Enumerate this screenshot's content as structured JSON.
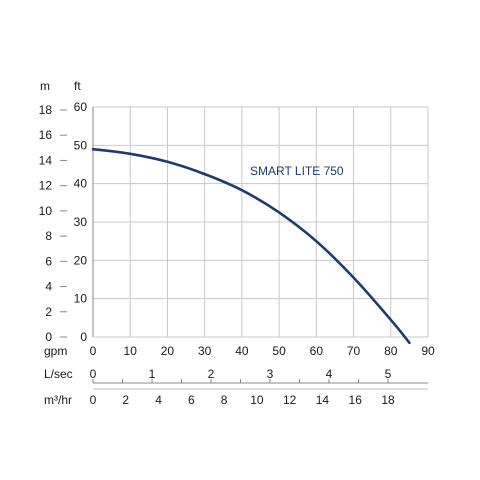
{
  "chart_data": {
    "type": "line",
    "axes": {
      "left_m": {
        "unit": "m",
        "ticks": [
          "18",
          "16",
          "14",
          "12",
          "10",
          "8",
          "6",
          "4",
          "2",
          "0"
        ],
        "range": [
          0,
          18
        ]
      },
      "left_ft": {
        "unit": "ft",
        "ticks": [
          "60",
          "50",
          "40",
          "30",
          "20",
          "10",
          "0"
        ],
        "range": [
          0,
          60
        ]
      },
      "x_gpm": {
        "unit": "gpm",
        "ticks": [
          "0",
          "10",
          "20",
          "30",
          "40",
          "50",
          "60",
          "70",
          "80",
          "90"
        ],
        "range": [
          0,
          90
        ]
      },
      "x_lsec": {
        "unit": "L/sec",
        "ticks": [
          "0",
          "1",
          "2",
          "3",
          "4",
          "5"
        ]
      },
      "x_m3hr": {
        "unit": "m³/hr",
        "ticks": [
          "0",
          "2",
          "4",
          "6",
          "8",
          "10",
          "12",
          "14",
          "16",
          "18"
        ]
      }
    },
    "grid": true,
    "series": [
      {
        "name": "SMART LITE 750",
        "color": "#1f3b6d",
        "x_gpm": [
          0,
          10,
          20,
          30,
          40,
          50,
          60,
          70,
          80,
          85
        ],
        "y_ft": [
          49,
          47.8,
          45.7,
          42.5,
          38.3,
          32.5,
          25,
          15.5,
          4.5,
          -1.5
        ]
      }
    ]
  }
}
